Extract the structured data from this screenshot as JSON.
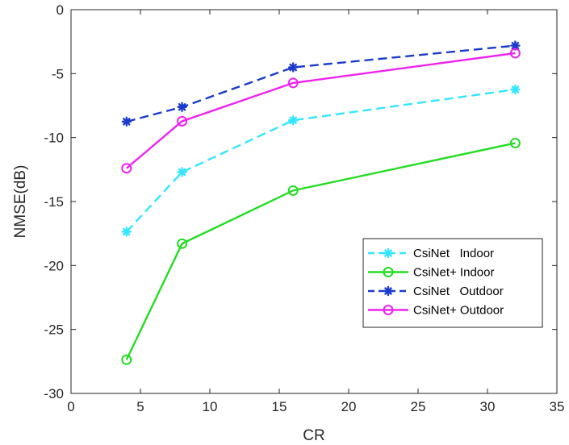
{
  "chart_data": {
    "type": "line",
    "title": "",
    "xlabel": "CR",
    "ylabel": "NMSE(dB)",
    "xlim": [
      0,
      35
    ],
    "ylim": [
      -30,
      0
    ],
    "xticks": [
      0,
      5,
      10,
      15,
      20,
      25,
      30,
      35
    ],
    "yticks": [
      0,
      -5,
      -10,
      -15,
      -20,
      -25,
      -30
    ],
    "grid": false,
    "legend_position": "lower-right",
    "series": [
      {
        "name": "CsiNet   Indoor",
        "x": [
          4,
          8,
          16,
          32
        ],
        "y": [
          -17.36,
          -12.7,
          -8.65,
          -6.24
        ],
        "color": "#33e6ff",
        "line": "dashed",
        "marker": "asterisk"
      },
      {
        "name": "CsiNet+ Indoor",
        "x": [
          4,
          8,
          16,
          32
        ],
        "y": [
          -27.37,
          -18.29,
          -14.14,
          -10.43
        ],
        "color": "#22dd22",
        "line": "solid",
        "marker": "circle"
      },
      {
        "name": "CsiNet   Outdoor",
        "x": [
          4,
          8,
          16,
          32
        ],
        "y": [
          -8.75,
          -7.61,
          -4.51,
          -2.81
        ],
        "color": "#1a3acc",
        "line": "dashed",
        "marker": "asterisk"
      },
      {
        "name": "CsiNet+ Outdoor",
        "x": [
          4,
          8,
          16,
          32
        ],
        "y": [
          -12.4,
          -8.72,
          -5.73,
          -3.4
        ],
        "color": "#ee22ee",
        "line": "solid",
        "marker": "circle"
      }
    ]
  }
}
